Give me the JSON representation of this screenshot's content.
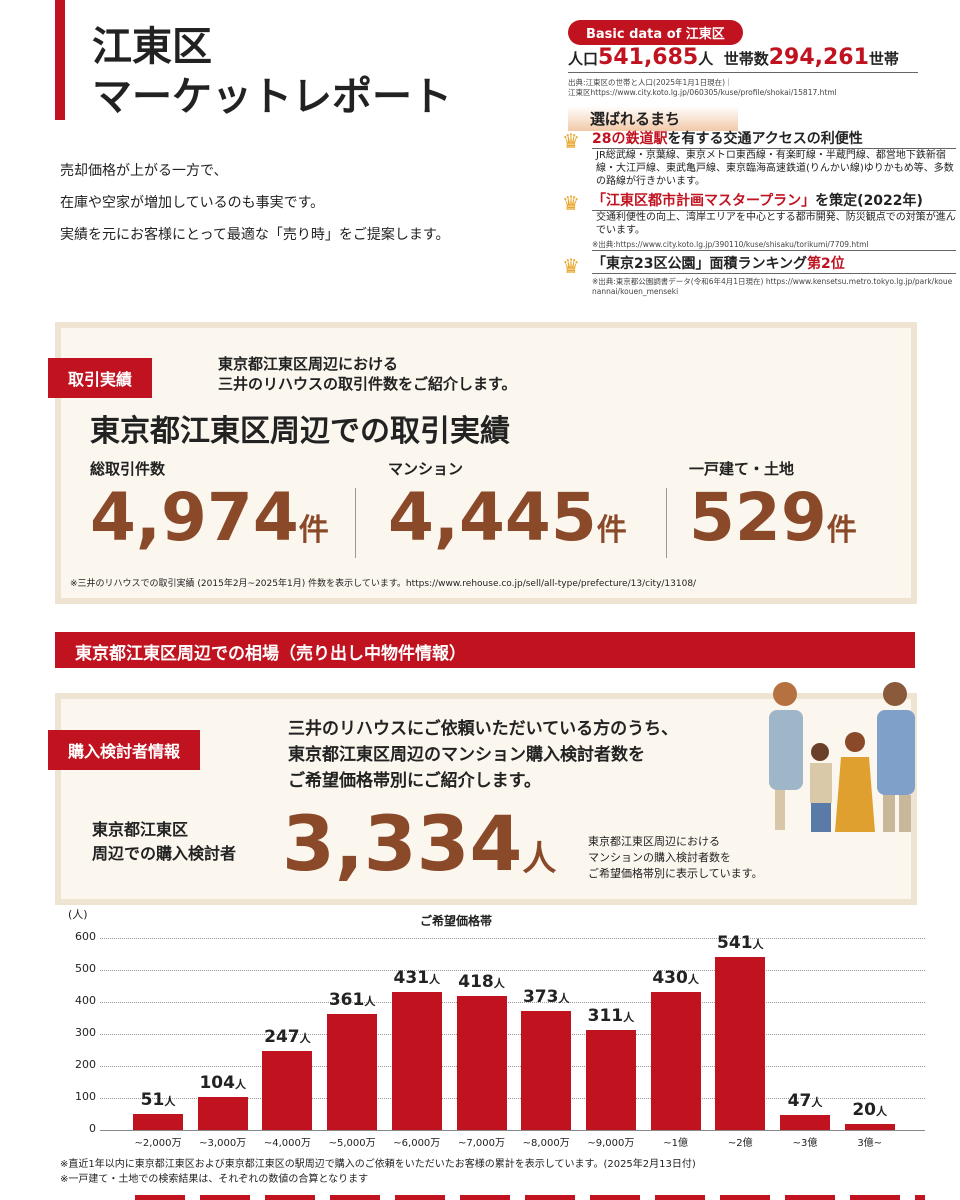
{
  "header": {
    "title_line1": "江東区",
    "title_line2": "マーケットレポート",
    "intro": [
      "売却価格が上がる一方で、",
      "在庫や空家が増加しているのも事実です。",
      "実績を元にお客様にとって最適な「売り時」をご提案します。"
    ]
  },
  "basic": {
    "tag": "Basic data of 江東区",
    "pop_label": "人口",
    "pop_value": "541,685",
    "pop_unit": "人",
    "hh_label": "世帯数",
    "hh_value": "294,261",
    "hh_unit": "世帯",
    "source": "出典:江東区の世帯と人口(2025年1月1日現在)｜",
    "source_url": "江東区https://www.city.koto.lg.jp/060305/kuse/profile/shokai/15817.html"
  },
  "chosen": {
    "heading": "選ばれるまち",
    "items": [
      {
        "red": "28の鉄道駅",
        "text": "を有する交通アクセスの利便性",
        "desc": "JR総武線・京葉線、東京メトロ東西線・有楽町線・半蔵門線、都営地下鉄新宿線・大江戸線、東武亀戸線、東京臨海高速鉄道(りんかい線)ゆりかもめ等、多数の路線が行きかいます。",
        "src": ""
      },
      {
        "red": "「江東区都市計画マスタープラン」",
        "text": "を策定(2022年)",
        "desc": "交通利便性の向上、湾岸エリアを中心とする都市開発、防災観点での対策が進んでいます。",
        "src": "※出典:https://www.city.koto.lg.jp/390110/kuse/shisaku/torikumi/7709.html"
      },
      {
        "red": "第2位",
        "text": "「東京23区公園」面積ランキング",
        "desc": "",
        "src": "※出典:東京都公園調書データ(令和6年4月1日現在) https://www.kensetsu.metro.tokyo.lg.jp/park/kouenannai/kouen_menseki"
      }
    ]
  },
  "deals": {
    "tag": "取引実績",
    "lead": "東京都江東区周辺における",
    "lead2": "三井のリハウスの取引件数をご紹介します。",
    "title": "東京都江東区周辺での取引実績",
    "stats": [
      {
        "label": "総取引件数",
        "value": "4,974",
        "unit": "件"
      },
      {
        "label": "マンション",
        "value": "4,445",
        "unit": "件"
      },
      {
        "label": "一戸建て・土地",
        "value": "529",
        "unit": "件"
      }
    ],
    "note": "※三井のリハウスでの取引実績 (2015年2月~2025年1月) 件数を表示しています。https://www.rehouse.co.jp/sell/all-type/prefecture/13/city/13108/"
  },
  "market_heading": "東京都江東区周辺での相場（売り出し中物件情報）",
  "buyers": {
    "tag": "購入検討者情報",
    "lead1": "三井のリハウスにご依頼いただいている方のうち、",
    "lead2": "東京都江東区周辺のマンション購入検討者数を",
    "lead3": "ご希望価格帯別にご紹介します。",
    "label1": "東京都江東区",
    "label2": "周辺での購入検討者",
    "value": "3,334",
    "unit": "人",
    "side1": "東京都江東区周辺における",
    "side2": "マンションの購入検討者数を",
    "side3": "ご希望価格帯別に表示しています。"
  },
  "chart_data": {
    "type": "bar",
    "title": "ご希望価格帯",
    "ylabel": "(人)",
    "ylim": [
      0,
      600
    ],
    "yticks": [
      "0",
      "100",
      "200",
      "300",
      "400",
      "500",
      "600"
    ],
    "unit": "人",
    "categories": [
      "~2,000万",
      "~3,000万",
      "~4,000万",
      "~5,000万",
      "~6,000万",
      "~7,000万",
      "~8,000万",
      "~9,000万",
      "~1億",
      "~2億",
      "~3億",
      "3億~"
    ],
    "values": [
      51,
      104,
      247,
      361,
      431,
      418,
      373,
      311,
      430,
      541,
      47,
      20
    ]
  },
  "footnotes": [
    "※直近1年以内に東京都江東区および東京都江東区の駅周辺で購入のご依頼をいただいたお客様の累計を表示しています。(2025年2月13日付)",
    "※一戸建て・土地での検索結果は、それぞれの数値の合算となります"
  ],
  "colors": {
    "accent": "#c0121f",
    "brown": "#8a4a2a"
  }
}
